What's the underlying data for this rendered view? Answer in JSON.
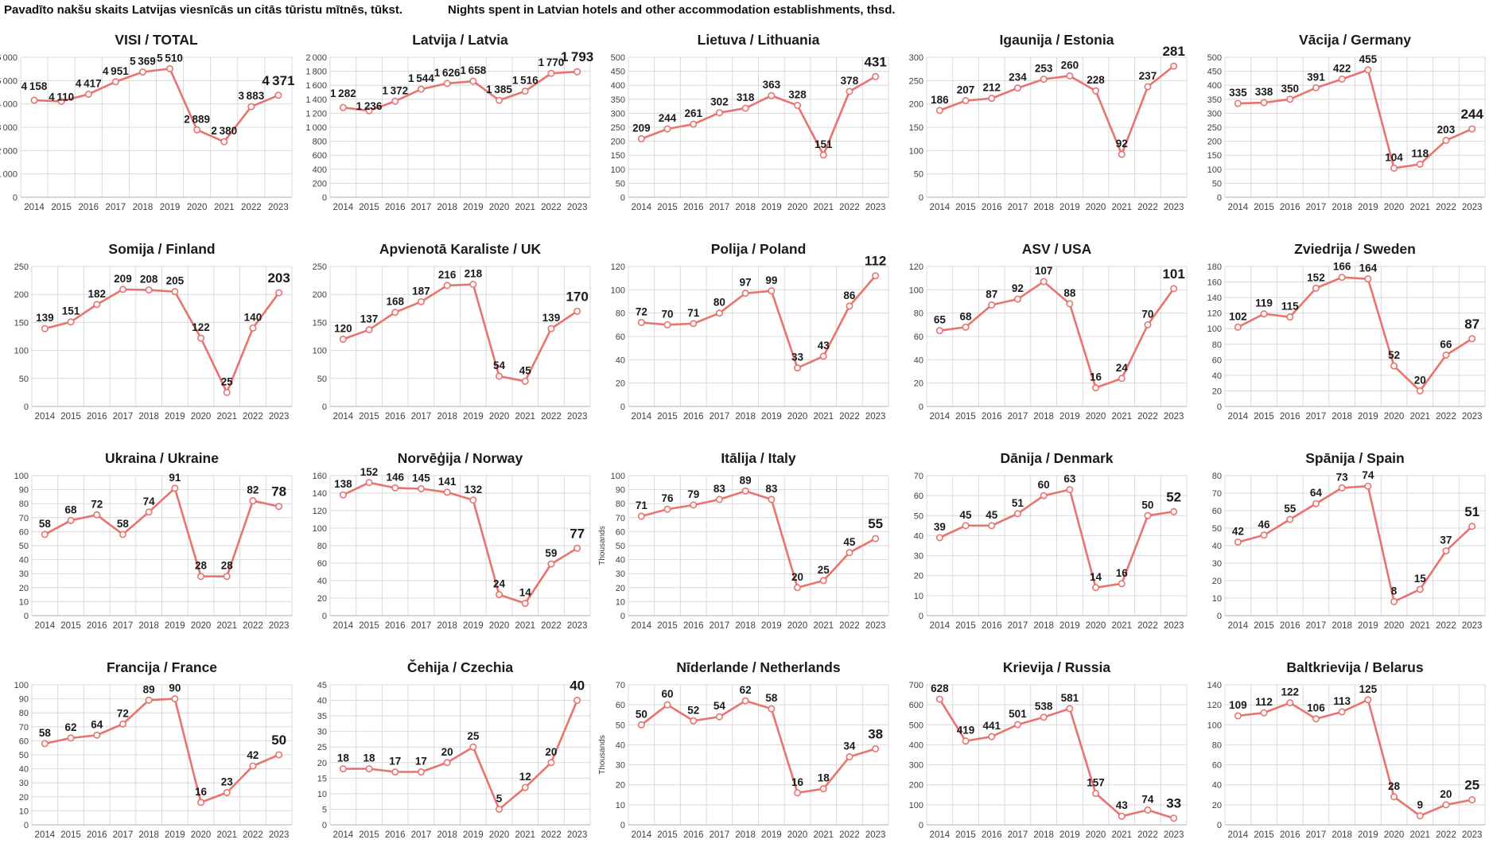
{
  "header": {
    "title_lv": "Pavadīto nakšu skaits Latvijas viesnīcās un citās tūristu mītnēs, tūkst.",
    "title_en": "Nights spent in Latvian hotels and other accommodation establishments, thsd."
  },
  "colors": {
    "line": "#e8736f",
    "marker_fill": "#ffffff",
    "grid": "#d9d9d9",
    "axis": "#bfbfbf",
    "data_label": "#1a1a1a",
    "tick_label": "#404040",
    "title": "#1a1a1a"
  },
  "chart_data": [
    {
      "type": "line",
      "slug": "total",
      "title": "VISI / TOTAL",
      "categories": [
        "2014",
        "2015",
        "2016",
        "2017",
        "2018",
        "2019",
        "2020",
        "2021",
        "2022",
        "2023"
      ],
      "values": [
        4158,
        4110,
        4417,
        4951,
        5369,
        5510,
        2889,
        2380,
        3883,
        4371
      ],
      "ylim": [
        0,
        6000
      ],
      "ystep": 1000,
      "clip_left": true
    },
    {
      "type": "line",
      "slug": "latvia",
      "title": "Latvija / Latvia",
      "categories": [
        "2014",
        "2015",
        "2016",
        "2017",
        "2018",
        "2019",
        "2020",
        "2021",
        "2022",
        "2023"
      ],
      "values": [
        1282,
        1236,
        1372,
        1544,
        1626,
        1658,
        1385,
        1516,
        1770,
        1793
      ],
      "ylim": [
        0,
        2000
      ],
      "ystep": 200
    },
    {
      "type": "line",
      "slug": "lithuania",
      "title": "Lietuva / Lithuania",
      "categories": [
        "2014",
        "2015",
        "2016",
        "2017",
        "2018",
        "2019",
        "2020",
        "2021",
        "2022",
        "2023"
      ],
      "values": [
        209,
        244,
        261,
        302,
        318,
        363,
        328,
        151,
        378,
        431
      ],
      "ylim": [
        0,
        500
      ],
      "ystep": 50
    },
    {
      "type": "line",
      "slug": "estonia",
      "title": "Igaunija / Estonia",
      "categories": [
        "2014",
        "2015",
        "2016",
        "2017",
        "2018",
        "2019",
        "2020",
        "2021",
        "2022",
        "2023"
      ],
      "values": [
        186,
        207,
        212,
        234,
        253,
        260,
        228,
        92,
        237,
        281
      ],
      "ylim": [
        0,
        300
      ],
      "ystep": 50
    },
    {
      "type": "line",
      "slug": "germany",
      "title": "Vācija / Germany",
      "categories": [
        "2014",
        "2015",
        "2016",
        "2017",
        "2018",
        "2019",
        "2020",
        "2021",
        "2022",
        "2023"
      ],
      "values": [
        335,
        338,
        350,
        391,
        422,
        455,
        104,
        118,
        203,
        244
      ],
      "ylim": [
        0,
        500
      ],
      "ystep": 50
    },
    {
      "type": "line",
      "slug": "finland",
      "title": "Somija / Finland",
      "categories": [
        "2014",
        "2015",
        "2016",
        "2017",
        "2018",
        "2019",
        "2020",
        "2021",
        "2022",
        "2023"
      ],
      "values": [
        139,
        151,
        182,
        209,
        208,
        205,
        122,
        25,
        140,
        203
      ],
      "ylim": [
        0,
        250
      ],
      "ystep": 50
    },
    {
      "type": "line",
      "slug": "uk",
      "title": "Apvienotā Karaliste / UK",
      "categories": [
        "2014",
        "2015",
        "2016",
        "2017",
        "2018",
        "2019",
        "2020",
        "2021",
        "2022",
        "2023"
      ],
      "values": [
        120,
        137,
        168,
        187,
        216,
        218,
        54,
        45,
        139,
        170
      ],
      "ylim": [
        0,
        250
      ],
      "ystep": 50
    },
    {
      "type": "line",
      "slug": "poland",
      "title": "Polija / Poland",
      "categories": [
        "2014",
        "2015",
        "2016",
        "2017",
        "2018",
        "2019",
        "2020",
        "2021",
        "2022",
        "2023"
      ],
      "values": [
        72,
        70,
        71,
        80,
        97,
        99,
        33,
        43,
        86,
        112
      ],
      "ylim": [
        0,
        120
      ],
      "ystep": 20
    },
    {
      "type": "line",
      "slug": "usa",
      "title": "ASV / USA",
      "categories": [
        "2014",
        "2015",
        "2016",
        "2017",
        "2018",
        "2019",
        "2020",
        "2021",
        "2022",
        "2023"
      ],
      "values": [
        65,
        68,
        87,
        92,
        107,
        88,
        16,
        24,
        70,
        101
      ],
      "ylim": [
        0,
        120
      ],
      "ystep": 20
    },
    {
      "type": "line",
      "slug": "sweden",
      "title": "Zviedrija / Sweden",
      "categories": [
        "2014",
        "2015",
        "2016",
        "2017",
        "2018",
        "2019",
        "2020",
        "2021",
        "2022",
        "2023"
      ],
      "values": [
        102,
        119,
        115,
        152,
        166,
        164,
        52,
        20,
        66,
        87
      ],
      "ylim": [
        0,
        180
      ],
      "ystep": 20
    },
    {
      "type": "line",
      "slug": "ukraine",
      "title": "Ukraina / Ukraine",
      "categories": [
        "2014",
        "2015",
        "2016",
        "2017",
        "2018",
        "2019",
        "2020",
        "2021",
        "2022",
        "2023"
      ],
      "values": [
        58,
        68,
        72,
        58,
        74,
        91,
        28,
        28,
        82,
        78
      ],
      "ylim": [
        0,
        100
      ],
      "ystep": 10
    },
    {
      "type": "line",
      "slug": "norway",
      "title": "Norvēģija / Norway",
      "categories": [
        "2014",
        "2015",
        "2016",
        "2017",
        "2018",
        "2019",
        "2020",
        "2021",
        "2022",
        "2023"
      ],
      "values": [
        138,
        152,
        146,
        145,
        141,
        132,
        24,
        14,
        59,
        77
      ],
      "ylim": [
        0,
        160
      ],
      "ystep": 20
    },
    {
      "type": "line",
      "slug": "italy",
      "title": "Itālija / Italy",
      "categories": [
        "2014",
        "2015",
        "2016",
        "2017",
        "2018",
        "2019",
        "2020",
        "2021",
        "2022",
        "2023"
      ],
      "values": [
        71,
        76,
        79,
        83,
        89,
        83,
        20,
        25,
        45,
        55
      ],
      "ylim": [
        0,
        100
      ],
      "ystep": 10,
      "ylabel": "Thousands"
    },
    {
      "type": "line",
      "slug": "denmark",
      "title": "Dānija / Denmark",
      "categories": [
        "2014",
        "2015",
        "2016",
        "2017",
        "2018",
        "2019",
        "2020",
        "2021",
        "2022",
        "2023"
      ],
      "values": [
        39,
        45,
        45,
        51,
        60,
        63,
        14,
        16,
        50,
        52
      ],
      "ylim": [
        0,
        70
      ],
      "ystep": 10
    },
    {
      "type": "line",
      "slug": "spain",
      "title": "Spānija / Spain",
      "categories": [
        "2014",
        "2015",
        "2016",
        "2017",
        "2018",
        "2019",
        "2020",
        "2021",
        "2022",
        "2023"
      ],
      "values": [
        42,
        46,
        55,
        64,
        73,
        74,
        8,
        15,
        37,
        51
      ],
      "ylim": [
        0,
        80
      ],
      "ystep": 10
    },
    {
      "type": "line",
      "slug": "france",
      "title": "Francija / France",
      "categories": [
        "2014",
        "2015",
        "2016",
        "2017",
        "2018",
        "2019",
        "2020",
        "2021",
        "2022",
        "2023"
      ],
      "values": [
        58,
        62,
        64,
        72,
        89,
        90,
        16,
        23,
        42,
        50
      ],
      "ylim": [
        0,
        100
      ],
      "ystep": 10
    },
    {
      "type": "line",
      "slug": "czechia",
      "title": "Čehija / Czechia",
      "categories": [
        "2014",
        "2015",
        "2016",
        "2017",
        "2018",
        "2019",
        "2020",
        "2021",
        "2022",
        "2023"
      ],
      "values": [
        18,
        18,
        17,
        17,
        20,
        25,
        5,
        12,
        20,
        40
      ],
      "ylim": [
        0,
        45
      ],
      "ystep": 5
    },
    {
      "type": "line",
      "slug": "netherlands",
      "title": "Nīderlande / Netherlands",
      "categories": [
        "2014",
        "2015",
        "2016",
        "2017",
        "2018",
        "2019",
        "2020",
        "2021",
        "2022",
        "2023"
      ],
      "values": [
        50,
        60,
        52,
        54,
        62,
        58,
        16,
        18,
        34,
        38
      ],
      "ylim": [
        0,
        70
      ],
      "ystep": 10,
      "ylabel": "Thousands"
    },
    {
      "type": "line",
      "slug": "russia",
      "title": "Krievija / Russia",
      "categories": [
        "2014",
        "2015",
        "2016",
        "2017",
        "2018",
        "2019",
        "2020",
        "2021",
        "2022",
        "2023"
      ],
      "values": [
        628,
        419,
        441,
        501,
        538,
        581,
        157,
        43,
        74,
        33
      ],
      "ylim": [
        0,
        700
      ],
      "ystep": 100
    },
    {
      "type": "line",
      "slug": "belarus",
      "title": "Baltkrievija / Belarus",
      "categories": [
        "2014",
        "2015",
        "2016",
        "2017",
        "2018",
        "2019",
        "2020",
        "2021",
        "2022",
        "2023"
      ],
      "values": [
        109,
        112,
        122,
        106,
        113,
        125,
        28,
        9,
        20,
        25
      ],
      "ylim": [
        0,
        140
      ],
      "ystep": 20
    }
  ]
}
